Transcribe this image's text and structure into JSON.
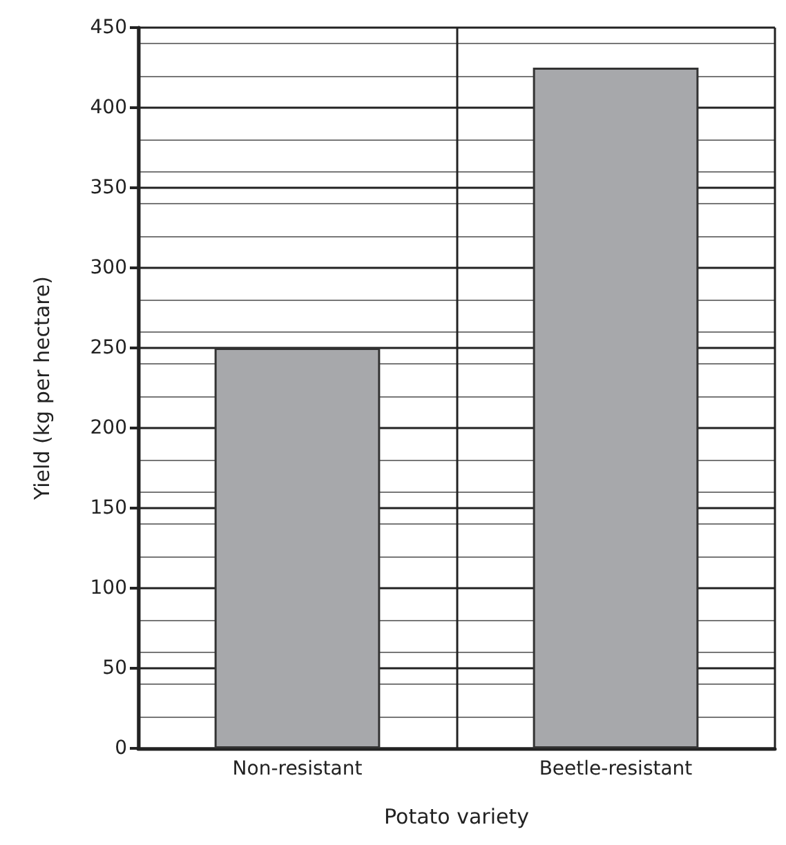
{
  "chart_data": {
    "type": "bar",
    "xlabel": "Potato variety",
    "ylabel": "Yield (kg per hectare)",
    "categories": [
      "Non-resistant",
      "Beetle-resistant"
    ],
    "values": [
      250,
      425
    ],
    "color": "#a7a8ab",
    "ylim": [
      0,
      450
    ],
    "yticks": [
      0,
      50,
      100,
      150,
      200,
      250,
      300,
      350,
      400,
      450
    ],
    "grid": true
  }
}
